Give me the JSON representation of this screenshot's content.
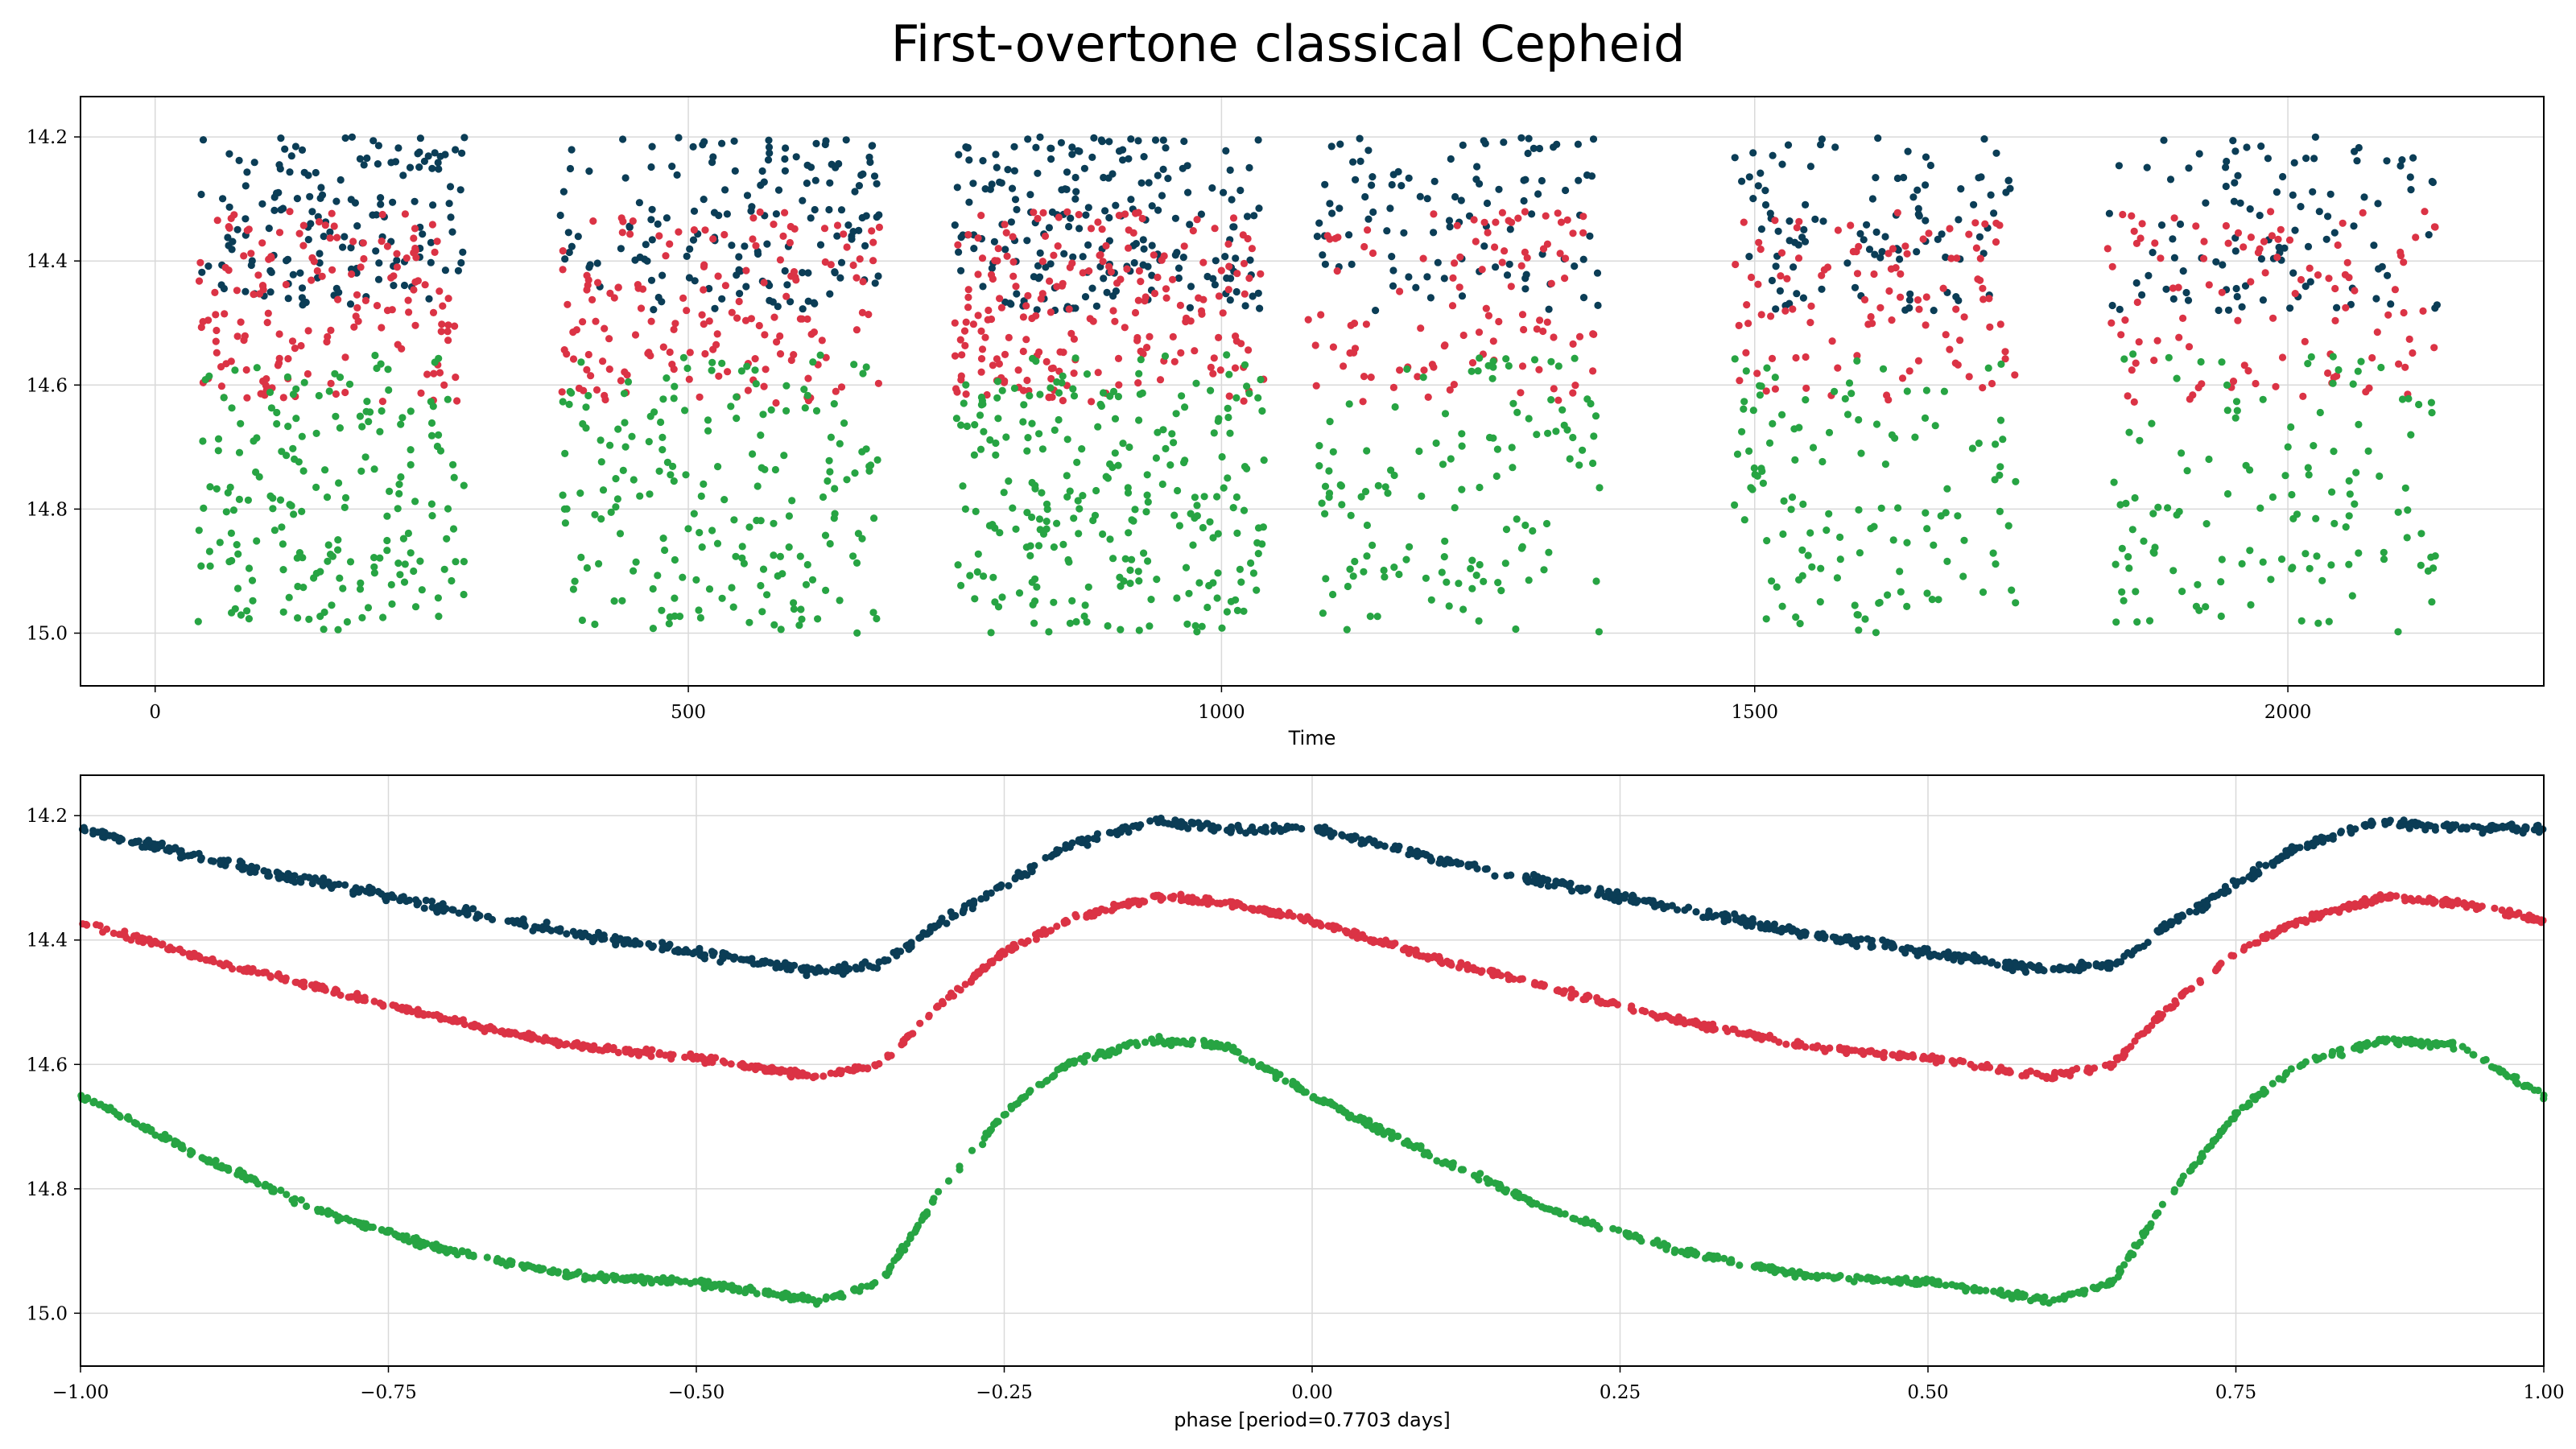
{
  "title": "First-overtone classical Cepheid",
  "colors": {
    "band_top": "#0b3d56",
    "band_mid": "#db3345",
    "band_bottom": "#27a443"
  },
  "chart_data": [
    {
      "type": "scatter",
      "xlabel": "Time",
      "ylabel": "",
      "xlim": [
        -70,
        2240
      ],
      "ylim": [
        15.085,
        14.135
      ],
      "y_inverted": true,
      "grid": true,
      "x_ticks": [
        "0",
        "500",
        "1000",
        "1500",
        "2000"
      ],
      "x_tick_values": [
        0,
        500,
        1000,
        1500,
        2000
      ],
      "y_ticks": [
        "14.2",
        "14.4",
        "14.6",
        "14.8",
        "15.0"
      ],
      "y_tick_values": [
        14.2,
        14.4,
        14.6,
        14.8,
        15.0
      ],
      "observing_seasons": [
        [
          40,
          290
        ],
        [
          380,
          680
        ],
        [
          750,
          1040
        ],
        [
          1080,
          1355
        ],
        [
          1480,
          1745
        ],
        [
          1830,
          2140
        ]
      ],
      "series": [
        {
          "color": "#0b3d56",
          "mag_range": [
            14.2,
            14.48
          ]
        },
        {
          "color": "#db3345",
          "mag_range": [
            14.32,
            14.63
          ]
        },
        {
          "color": "#27a443",
          "mag_range": [
            14.55,
            15.0
          ]
        }
      ]
    },
    {
      "type": "scatter",
      "xlabel": "phase [period=0.7703 days]",
      "ylabel": "",
      "xlim": [
        -1.0,
        1.0
      ],
      "ylim": [
        15.085,
        14.135
      ],
      "y_inverted": true,
      "grid": true,
      "period_days": 0.7703,
      "x_ticks": [
        "−1.00",
        "−0.75",
        "−0.50",
        "−0.25",
        "0.00",
        "0.25",
        "0.50",
        "0.75",
        "1.00"
      ],
      "x_tick_values": [
        -1.0,
        -0.75,
        -0.5,
        -0.25,
        0.0,
        0.25,
        0.5,
        0.75,
        1.0
      ],
      "y_ticks": [
        "14.2",
        "14.4",
        "14.6",
        "14.8",
        "15.0"
      ],
      "y_tick_values": [
        14.2,
        14.4,
        14.6,
        14.8,
        15.0
      ],
      "series": [
        {
          "color": "#0b3d56",
          "phase": [
            0.0,
            0.1,
            0.2,
            0.3,
            0.4,
            0.5,
            0.6,
            0.65,
            0.7,
            0.75,
            0.8,
            0.87,
            0.93,
            1.0
          ],
          "mag": [
            14.22,
            14.27,
            14.31,
            14.35,
            14.39,
            14.42,
            14.45,
            14.44,
            14.37,
            14.31,
            14.25,
            14.21,
            14.22,
            14.22
          ]
        },
        {
          "color": "#db3345",
          "phase": [
            0.0,
            0.1,
            0.2,
            0.3,
            0.4,
            0.5,
            0.6,
            0.65,
            0.7,
            0.75,
            0.8,
            0.87,
            0.93,
            1.0
          ],
          "mag": [
            14.37,
            14.43,
            14.48,
            14.53,
            14.57,
            14.59,
            14.62,
            14.6,
            14.5,
            14.42,
            14.37,
            14.33,
            14.34,
            14.37
          ]
        },
        {
          "color": "#27a443",
          "phase": [
            0.0,
            0.1,
            0.2,
            0.3,
            0.4,
            0.5,
            0.6,
            0.65,
            0.7,
            0.75,
            0.8,
            0.87,
            0.93,
            1.0
          ],
          "mag": [
            14.65,
            14.75,
            14.84,
            14.9,
            14.94,
            14.95,
            14.98,
            14.95,
            14.8,
            14.68,
            14.6,
            14.56,
            14.57,
            14.65
          ]
        }
      ]
    }
  ]
}
